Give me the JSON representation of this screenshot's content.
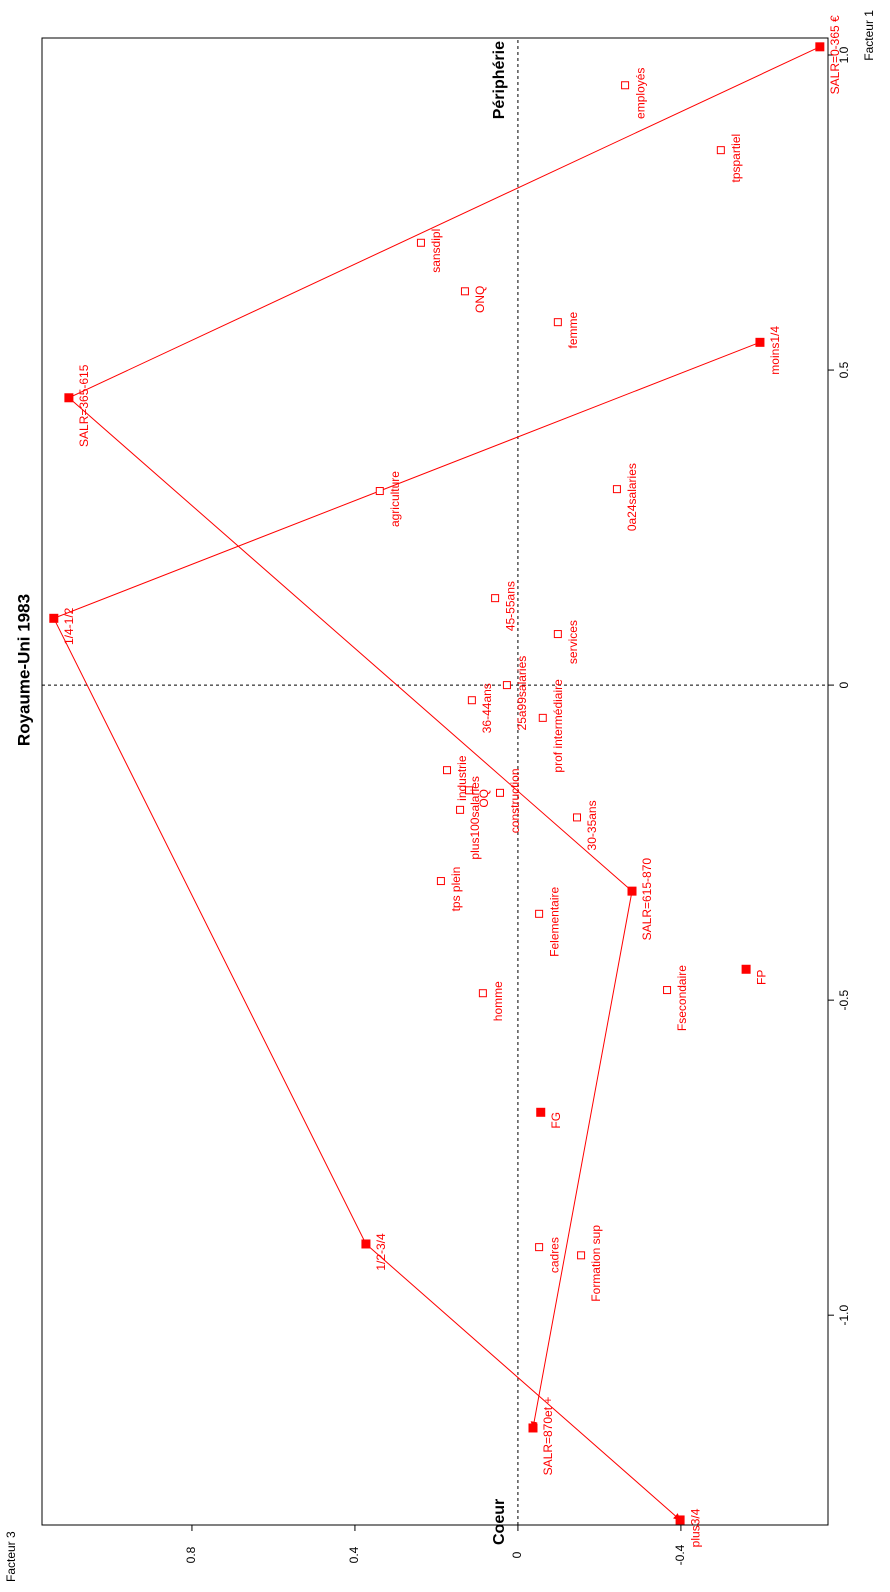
{
  "chart_data": {
    "type": "scatter",
    "title": "Royaume-Uni 1983",
    "xlabel": "Facteur 1",
    "ylabel": "Facteur 3",
    "xlim": [
      -1.333,
      1.027
    ],
    "ylim": [
      -0.761,
      1.168
    ],
    "xticks": [
      {
        "value": -1,
        "label": "-1.0"
      },
      -0.5,
      0,
      0.5,
      {
        "value": 1,
        "label": "1.0"
      }
    ],
    "yticks": [
      -0.4,
      0,
      0.4,
      0.8
    ],
    "reference_lines": true,
    "annotations": [
      "Coeur",
      "Périphérie"
    ],
    "color": "#ff0000",
    "trajectories": [
      {
        "points": [
          {
            "label": "SALR=0-365 €",
            "x": 1.013,
            "y": -0.741,
            "marker": "filled"
          },
          {
            "label": "SALR=365-615",
            "x": 0.456,
            "y": 1.102,
            "marker": "filled"
          },
          {
            "label": "SALR=615-870",
            "x": -0.327,
            "y": -0.28,
            "marker": "filled"
          },
          {
            "label": "SALR=870et +",
            "x": -1.179,
            "y": -0.037,
            "marker": "filled"
          }
        ]
      },
      {
        "points": [
          {
            "label": "moins1/4",
            "x": 0.544,
            "y": -0.594,
            "marker": "filled"
          },
          {
            "label": "1/4-1/2",
            "x": 0.106,
            "y": 1.139,
            "marker": "filled"
          },
          {
            "label": "1/2-3/4",
            "x": -0.887,
            "y": 0.373,
            "marker": "filled"
          },
          {
            "label": "plus3/4",
            "x": -1.325,
            "y": -0.398,
            "marker": "filled"
          }
        ]
      }
    ],
    "points": [
      {
        "label": "employés",
        "x": 0.952,
        "y": -0.263,
        "marker": "hollow"
      },
      {
        "label": "tpspartiel",
        "x": 0.849,
        "y": -0.498,
        "marker": "hollow"
      },
      {
        "label": "sansdipl",
        "x": 0.702,
        "y": 0.238,
        "marker": "hollow"
      },
      {
        "label": "ONQ",
        "x": 0.625,
        "y": 0.13,
        "marker": "hollow"
      },
      {
        "label": "femme",
        "x": 0.576,
        "y": -0.098,
        "marker": "hollow"
      },
      {
        "label": "agriculture",
        "x": 0.308,
        "y": 0.339,
        "marker": "hollow"
      },
      {
        "label": "0a24salaries",
        "x": 0.311,
        "y": -0.243,
        "marker": "hollow"
      },
      {
        "label": "45-55ans",
        "x": 0.138,
        "y": 0.056,
        "marker": "hollow"
      },
      {
        "label": "services",
        "x": 0.081,
        "y": -0.098,
        "marker": "hollow"
      },
      {
        "label": "25a99salaries",
        "x": 0.0,
        "y": 0.027,
        "marker": "hollow"
      },
      {
        "label": "36-44ans",
        "x": -0.024,
        "y": 0.113,
        "marker": "hollow"
      },
      {
        "label": "prof intermédiaire",
        "x": -0.052,
        "y": -0.061,
        "marker": "hollow"
      },
      {
        "label": "industrie",
        "x": -0.135,
        "y": 0.174,
        "marker": "hollow"
      },
      {
        "label": "OQ",
        "x": -0.167,
        "y": 0.12,
        "marker": "hollow"
      },
      {
        "label": "construction",
        "x": -0.171,
        "y": 0.044,
        "marker": "hollow"
      },
      {
        "label": "plus100salaries",
        "x": -0.198,
        "y": 0.142,
        "marker": "hollow"
      },
      {
        "label": "30-35ans",
        "x": -0.21,
        "y": -0.145,
        "marker": "hollow"
      },
      {
        "label": "tps plein",
        "x": -0.311,
        "y": 0.189,
        "marker": "hollow"
      },
      {
        "label": "Felementaire",
        "x": -0.363,
        "y": -0.052,
        "marker": "hollow"
      },
      {
        "label": "homme",
        "x": -0.489,
        "y": 0.086,
        "marker": "hollow"
      },
      {
        "label": "Fsecondaire",
        "x": -0.484,
        "y": -0.366,
        "marker": "hollow"
      },
      {
        "label": "cadres",
        "x": -0.892,
        "y": -0.052,
        "marker": "hollow"
      },
      {
        "label": "Formation sup",
        "x": -0.905,
        "y": -0.155,
        "marker": "hollow"
      },
      {
        "label": "FP",
        "x": -0.451,
        "y": -0.56,
        "marker": "filled"
      },
      {
        "label": "FG",
        "x": -0.678,
        "y": -0.056,
        "marker": "filled"
      }
    ]
  }
}
